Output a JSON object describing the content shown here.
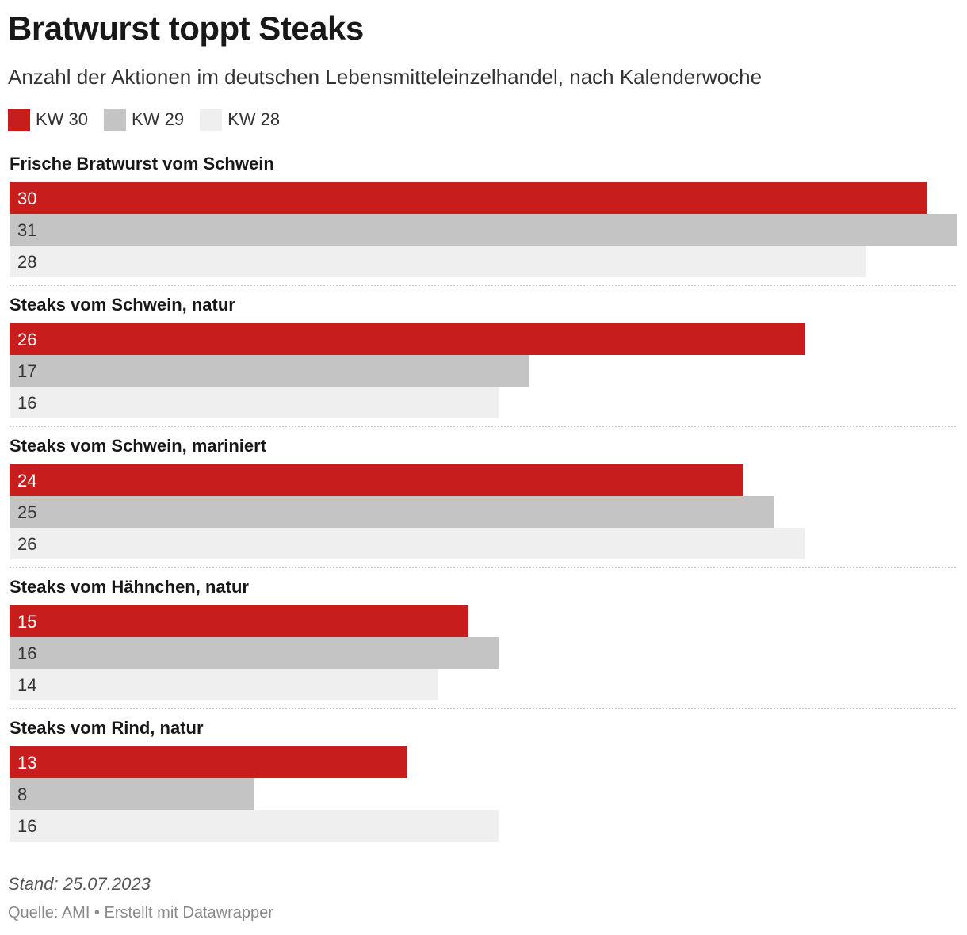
{
  "title": "Bratwurst toppt Steaks",
  "subtitle": "Anzahl der Aktionen im deutschen Lebensmitteleinzelhandel, nach Kalenderwoche",
  "footer": {
    "stand": "Stand: 25.07.2023",
    "source": "Quelle: AMI • Erstellt mit Datawrapper"
  },
  "chart_data": {
    "type": "bar",
    "orientation": "horizontal",
    "categories": [
      "Frische Bratwurst vom Schwein",
      "Steaks vom Schwein, natur",
      "Steaks vom Schwein, mariniert",
      "Steaks vom Hähnchen, natur",
      "Steaks vom Rind, natur"
    ],
    "series": [
      {
        "name": "KW 30",
        "color": "#c71e1d",
        "text_color": "#ffffff",
        "values": [
          30,
          26,
          24,
          15,
          13
        ]
      },
      {
        "name": "KW 29",
        "color": "#c4c4c4",
        "text_color": "#333333",
        "values": [
          31,
          17,
          25,
          16,
          8
        ]
      },
      {
        "name": "KW 28",
        "color": "#efefef",
        "text_color": "#333333",
        "values": [
          28,
          16,
          26,
          14,
          16
        ]
      }
    ],
    "xlim": [
      0,
      31
    ],
    "grid": false,
    "legend_position": "top-left",
    "value_labels": "inside-left"
  }
}
